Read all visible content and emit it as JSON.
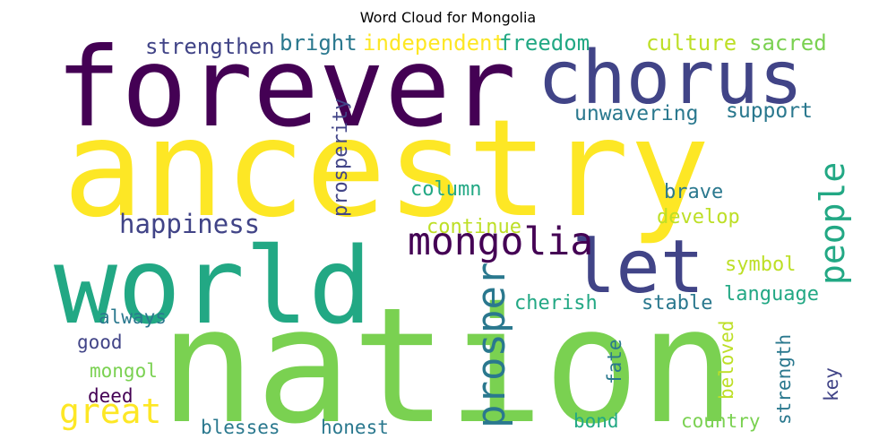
{
  "chart_data": {
    "type": "wordcloud",
    "title": "Word Cloud for Mongolia",
    "words": [
      {
        "text": "ancestry",
        "weight": 1.0,
        "color": "#fde725"
      },
      {
        "text": "nation",
        "weight": 0.98,
        "color": "#7ad151"
      },
      {
        "text": "forever",
        "weight": 0.84,
        "color": "#440154"
      },
      {
        "text": "world",
        "weight": 0.8,
        "color": "#22a884"
      },
      {
        "text": "chorus",
        "weight": 0.58,
        "color": "#414487"
      },
      {
        "text": "let",
        "weight": 0.58,
        "color": "#414487"
      },
      {
        "text": "prosper",
        "weight": 0.33,
        "color": "#2a788e"
      },
      {
        "text": "mongolia",
        "weight": 0.32,
        "color": "#440154"
      },
      {
        "text": "people",
        "weight": 0.28,
        "color": "#22a884"
      },
      {
        "text": "great",
        "weight": 0.27,
        "color": "#fde725"
      },
      {
        "text": "happiness",
        "weight": 0.22,
        "color": "#414487"
      },
      {
        "text": "strengthen",
        "weight": 0.18,
        "color": "#414487"
      },
      {
        "text": "bright",
        "weight": 0.18,
        "color": "#2a788e"
      },
      {
        "text": "independent",
        "weight": 0.18,
        "color": "#fde725"
      },
      {
        "text": "freedom",
        "weight": 0.18,
        "color": "#22a884"
      },
      {
        "text": "culture",
        "weight": 0.18,
        "color": "#bddf26"
      },
      {
        "text": "sacred",
        "weight": 0.18,
        "color": "#7ad151"
      },
      {
        "text": "unwavering",
        "weight": 0.17,
        "color": "#2a788e"
      },
      {
        "text": "support",
        "weight": 0.17,
        "color": "#2a788e"
      },
      {
        "text": "prosperity",
        "weight": 0.16,
        "color": "#414487"
      },
      {
        "text": "column",
        "weight": 0.16,
        "color": "#22a884"
      },
      {
        "text": "brave",
        "weight": 0.16,
        "color": "#2a788e"
      },
      {
        "text": "continue",
        "weight": 0.16,
        "color": "#bddf26"
      },
      {
        "text": "develop",
        "weight": 0.16,
        "color": "#bddf26"
      },
      {
        "text": "symbol",
        "weight": 0.16,
        "color": "#bddf26"
      },
      {
        "text": "language",
        "weight": 0.16,
        "color": "#22a884"
      },
      {
        "text": "cherish",
        "weight": 0.16,
        "color": "#22a884"
      },
      {
        "text": "stable",
        "weight": 0.16,
        "color": "#2a788e"
      },
      {
        "text": "always",
        "weight": 0.15,
        "color": "#2a788e"
      },
      {
        "text": "good",
        "weight": 0.15,
        "color": "#414487"
      },
      {
        "text": "mongol",
        "weight": 0.15,
        "color": "#7ad151"
      },
      {
        "text": "deed",
        "weight": 0.15,
        "color": "#440154"
      },
      {
        "text": "blesses",
        "weight": 0.15,
        "color": "#2a788e"
      },
      {
        "text": "honest",
        "weight": 0.15,
        "color": "#2a788e"
      },
      {
        "text": "bond",
        "weight": 0.15,
        "color": "#22a884"
      },
      {
        "text": "country",
        "weight": 0.15,
        "color": "#7ad151"
      },
      {
        "text": "fate",
        "weight": 0.15,
        "color": "#2a788e"
      },
      {
        "text": "beloved",
        "weight": 0.15,
        "color": "#bddf26"
      },
      {
        "text": "strength",
        "weight": 0.15,
        "color": "#2a788e"
      },
      {
        "text": "key",
        "weight": 0.15,
        "color": "#414487"
      }
    ]
  }
}
